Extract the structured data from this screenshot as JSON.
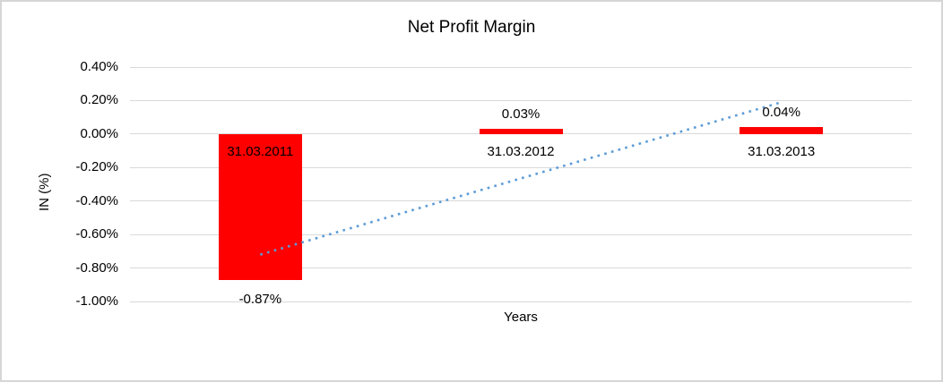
{
  "chart_data": {
    "type": "bar",
    "title": "Net Profit Margin",
    "xlabel": "Years",
    "ylabel": "IN (%)",
    "categories": [
      "31.03.2011",
      "31.03.2012",
      "31.03.2013"
    ],
    "values": [
      -0.87,
      0.03,
      0.04
    ],
    "data_labels": [
      "-0.87%",
      "0.03%",
      "0.04%"
    ],
    "ylim": [
      -1.0,
      0.4
    ],
    "ytick_step": 0.2,
    "ytick_labels": [
      "0.40%",
      "0.20%",
      "0.00%",
      "-0.20%",
      "-0.40%",
      "-0.60%",
      "-0.80%",
      "-1.00%"
    ],
    "grid": true,
    "legend": false,
    "bar_color": "#FF0000",
    "label_color": "#000000",
    "gridline_color": "#D9D9D9",
    "trendline": {
      "type": "linear",
      "style": "dotted",
      "color": "#5B9BD5",
      "start_value": -0.72,
      "end_value": 0.19
    }
  }
}
